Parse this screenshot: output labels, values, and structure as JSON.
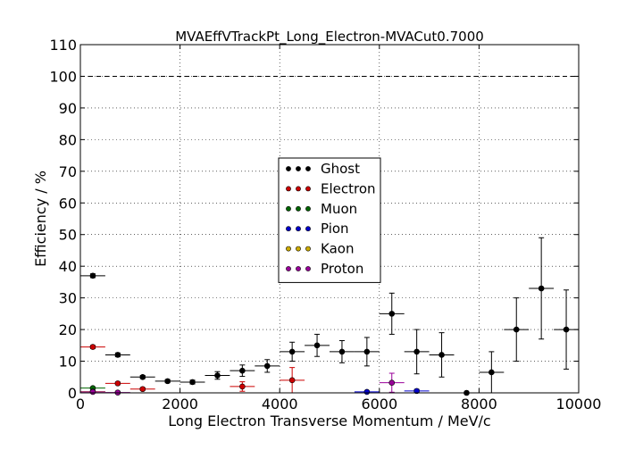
{
  "chart_data": {
    "type": "scatter",
    "title": "MVAEffVTrackPt_Long_Electron-MVACut0.7000",
    "xlabel": "Long Electron Transverse Momentum / MeV/c",
    "ylabel": "Efficiency / %",
    "xlim": [
      0,
      10000
    ],
    "ylim": [
      0,
      110
    ],
    "xticks": [
      0,
      2000,
      4000,
      6000,
      8000,
      10000
    ],
    "yticks": [
      0,
      10,
      20,
      30,
      40,
      50,
      60,
      70,
      80,
      90,
      100,
      110
    ],
    "reference_line": 100,
    "grid": true,
    "legend_position": "center",
    "series": [
      {
        "name": "Ghost",
        "color": "#000000",
        "points": [
          {
            "x": 250,
            "y": 37,
            "xerr": 250,
            "yerr": 0.6
          },
          {
            "x": 750,
            "y": 12,
            "xerr": 250,
            "yerr": 0.6
          },
          {
            "x": 1250,
            "y": 5,
            "xerr": 250,
            "yerr": 0.5
          },
          {
            "x": 1750,
            "y": 3.7,
            "xerr": 250,
            "yerr": 0.5
          },
          {
            "x": 2250,
            "y": 3.4,
            "xerr": 250,
            "yerr": 0.6
          },
          {
            "x": 2750,
            "y": 5.5,
            "xerr": 250,
            "yerr": 1.2
          },
          {
            "x": 3250,
            "y": 7,
            "xerr": 250,
            "yerr": 1.8
          },
          {
            "x": 3750,
            "y": 8.5,
            "xerr": 250,
            "yerr": 2.0
          },
          {
            "x": 4250,
            "y": 13,
            "xerr": 250,
            "yerr": 3.0
          },
          {
            "x": 4750,
            "y": 15,
            "xerr": 250,
            "yerr": 3.5
          },
          {
            "x": 5250,
            "y": 13,
            "xerr": 250,
            "yerr": 3.5
          },
          {
            "x": 5750,
            "y": 13,
            "xerr": 250,
            "yerr": 4.5
          },
          {
            "x": 6250,
            "y": 25,
            "xerr": 250,
            "yerr": 6.5
          },
          {
            "x": 6750,
            "y": 13,
            "xerr": 250,
            "yerr": 7
          },
          {
            "x": 7250,
            "y": 12,
            "xerr": 250,
            "yerr": 7
          },
          {
            "x": 7750,
            "y": 0,
            "xerr": 250,
            "yerr": 0
          },
          {
            "x": 8250,
            "y": 6.5,
            "xerr": 250,
            "yerr": 6.5
          },
          {
            "x": 8750,
            "y": 20,
            "xerr": 250,
            "yerr": 10
          },
          {
            "x": 9250,
            "y": 33,
            "xerr": 250,
            "yerr": 16
          },
          {
            "x": 9750,
            "y": 20,
            "xerr": 250,
            "yerr": 12.5
          }
        ]
      },
      {
        "name": "Electron",
        "color": "#cc0000",
        "points": [
          {
            "x": 250,
            "y": 14.5,
            "xerr": 250,
            "yerr": 0.5
          },
          {
            "x": 750,
            "y": 3,
            "xerr": 250,
            "yerr": 0.4
          },
          {
            "x": 1250,
            "y": 1.2,
            "xerr": 250,
            "yerr": 0.4
          },
          {
            "x": 3250,
            "y": 2,
            "xerr": 250,
            "yerr": 1.5
          },
          {
            "x": 4250,
            "y": 4,
            "xerr": 250,
            "yerr": 4
          }
        ]
      },
      {
        "name": "Muon",
        "color": "#006600",
        "points": [
          {
            "x": 250,
            "y": 1.5,
            "xerr": 250,
            "yerr": 0.3
          }
        ]
      },
      {
        "name": "Pion",
        "color": "#0000cc",
        "points": [
          {
            "x": 5750,
            "y": 0.3,
            "xerr": 250,
            "yerr": 0.3
          },
          {
            "x": 6750,
            "y": 0.6,
            "xerr": 250,
            "yerr": 0.5
          }
        ]
      },
      {
        "name": "Kaon",
        "color": "#ccaa00",
        "points": [
          {
            "x": 250,
            "y": 0.4,
            "xerr": 250,
            "yerr": 0.2
          }
        ]
      },
      {
        "name": "Proton",
        "color": "#990099",
        "points": [
          {
            "x": 250,
            "y": 0.3,
            "xerr": 250,
            "yerr": 0.2
          },
          {
            "x": 750,
            "y": 0.1,
            "xerr": 250,
            "yerr": 0.1
          },
          {
            "x": 6250,
            "y": 3.2,
            "xerr": 250,
            "yerr": 3
          }
        ]
      }
    ]
  }
}
